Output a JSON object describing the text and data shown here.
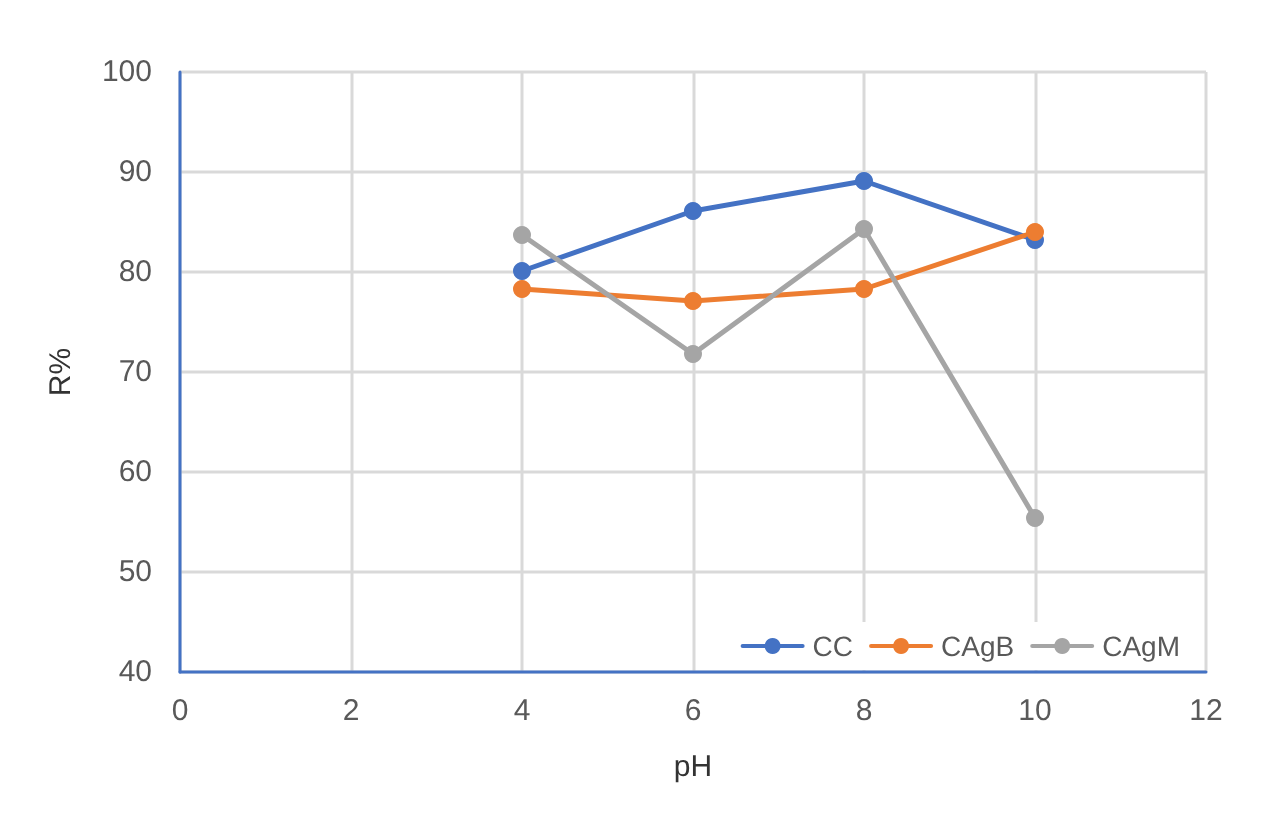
{
  "chart_data": {
    "type": "line",
    "xlabel": "pH",
    "ylabel": "R%",
    "x": [
      4,
      6,
      8,
      10
    ],
    "series": [
      {
        "name": "CC",
        "color": "#4472c4",
        "values": [
          80.1,
          86.1,
          89.1,
          83.2
        ]
      },
      {
        "name": "CAgB",
        "color": "#ed7d31",
        "values": [
          78.3,
          77.1,
          78.3,
          84.0
        ]
      },
      {
        "name": "CAgM",
        "color": "#a5a5a5",
        "values": [
          83.7,
          71.8,
          84.3,
          55.4
        ]
      }
    ],
    "xlim": [
      0,
      12
    ],
    "xticks": [
      0,
      2,
      4,
      6,
      8,
      10,
      12
    ],
    "ylim": [
      40,
      100
    ],
    "yticks": [
      40,
      50,
      60,
      70,
      80,
      90,
      100
    ],
    "grid": true,
    "legend": "bottom right",
    "marker": "circle",
    "line_style": "solid"
  }
}
